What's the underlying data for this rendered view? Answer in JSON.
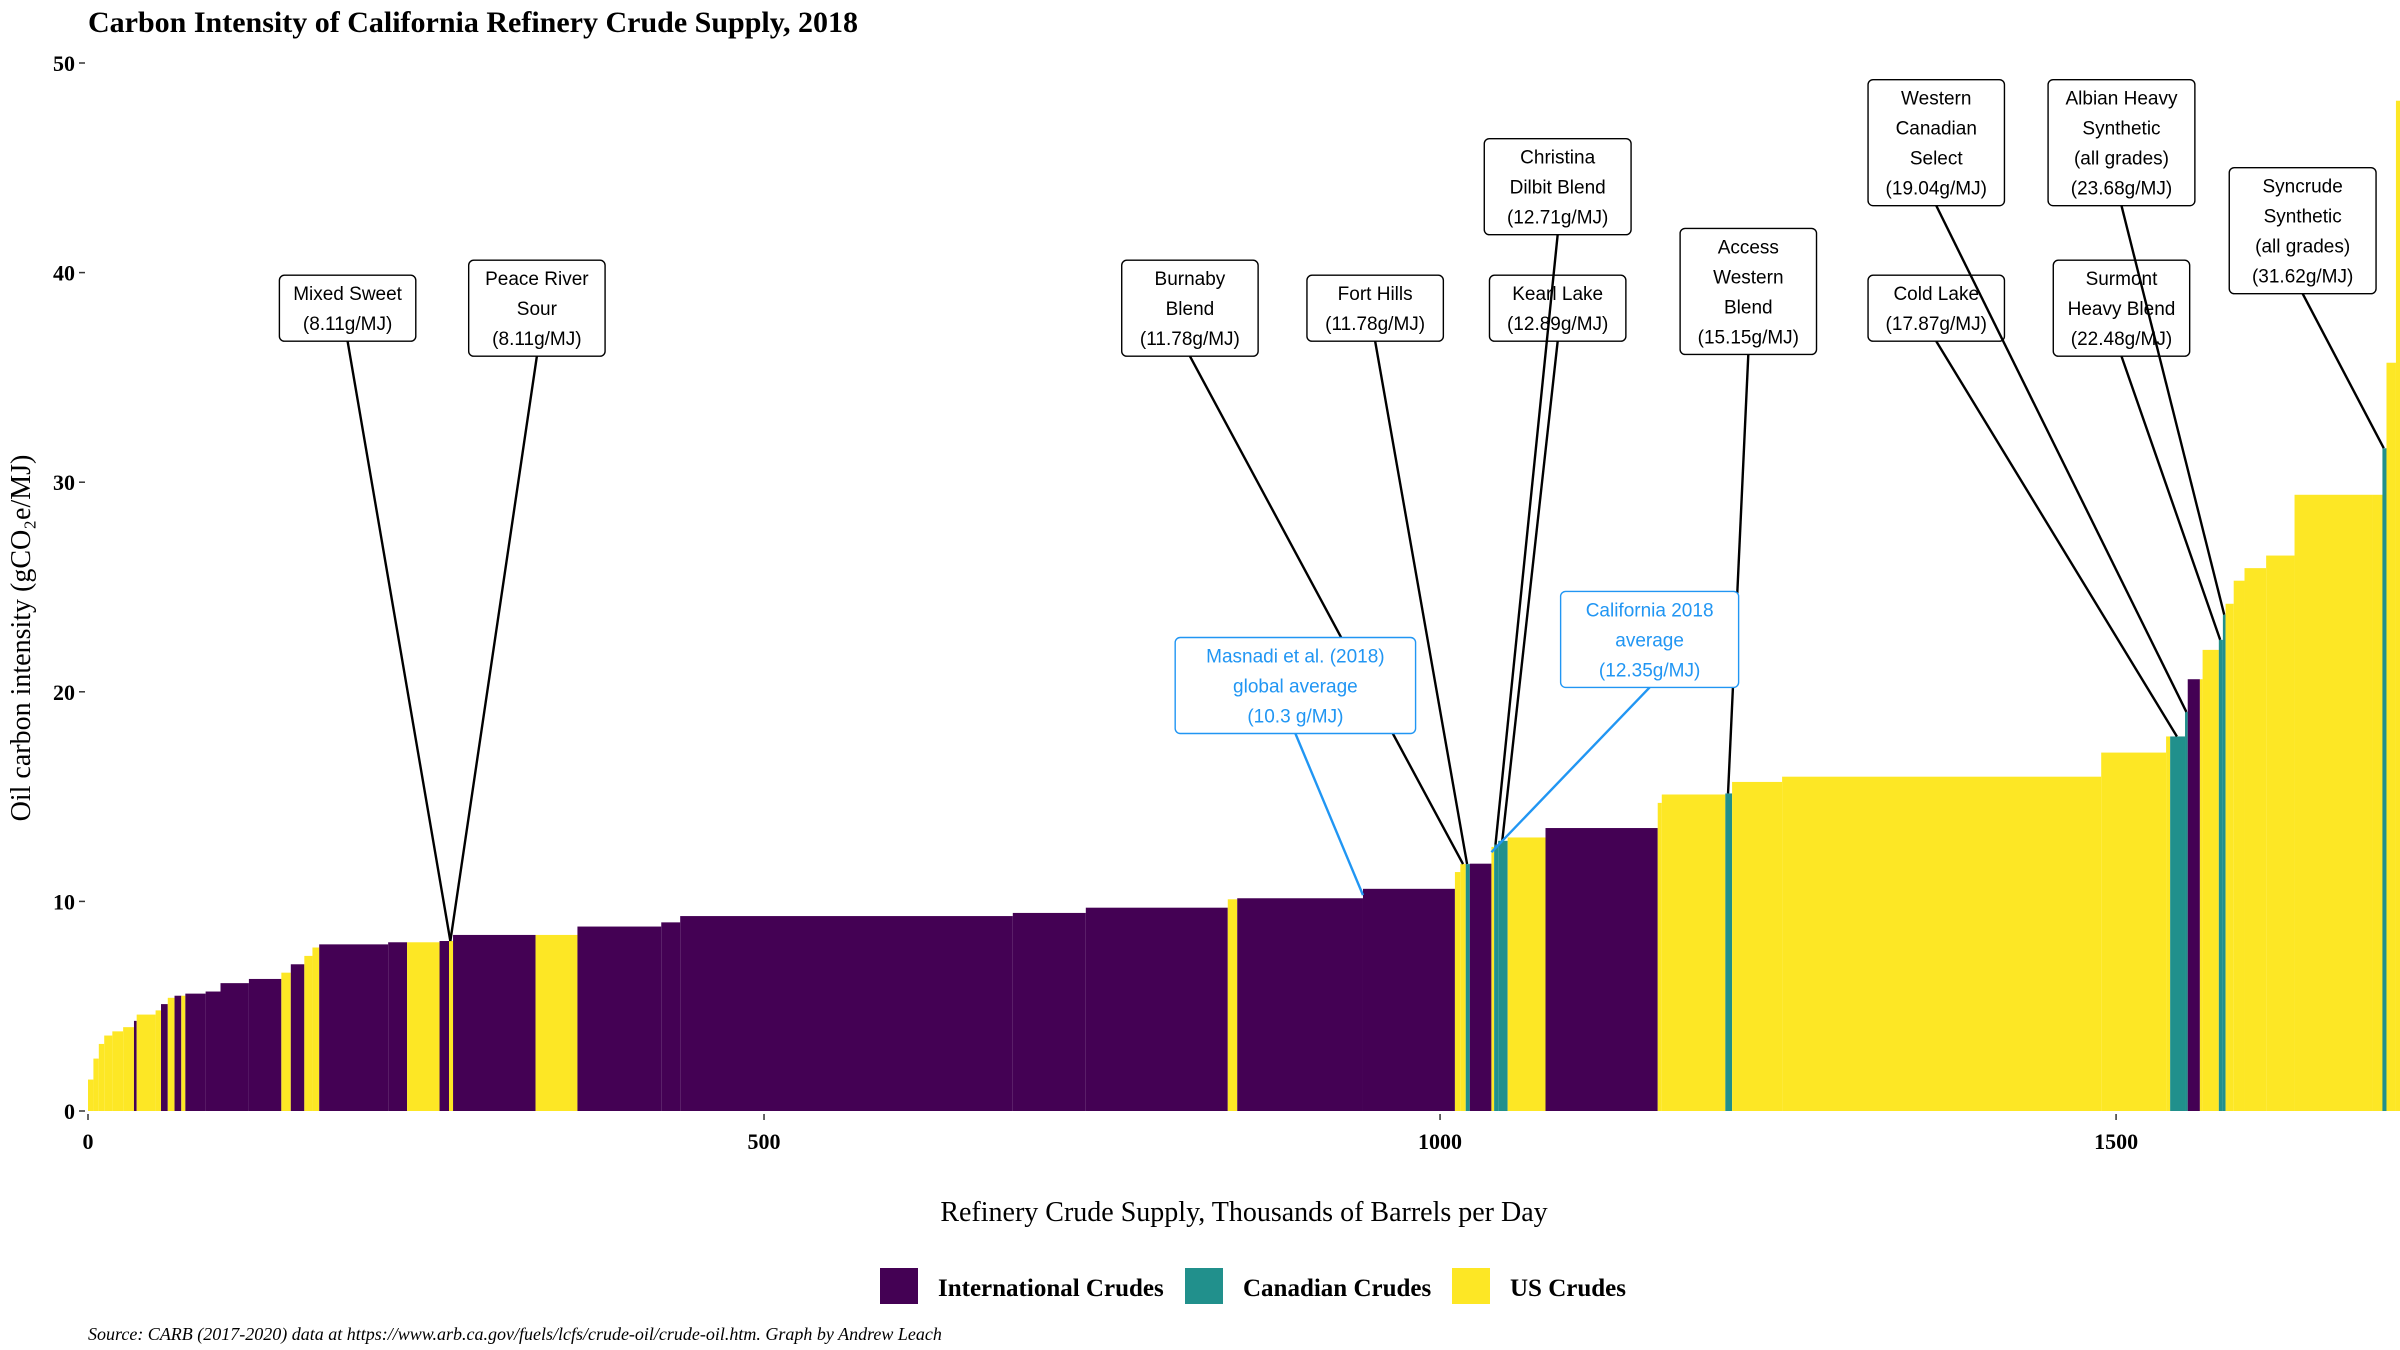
{
  "chart_data": {
    "type": "bar",
    "title": "Carbon Intensity of California Refinery Crude Supply, 2018",
    "xlabel": "Refinery Crude Supply, Thousands of Barrels per Day",
    "ylabel": "Oil carbon intensity (gCO₂e/MJ)",
    "xlim": [
      0,
      1710
    ],
    "ylim": [
      0,
      50
    ],
    "x_ticks": [
      0,
      500,
      1000,
      1500
    ],
    "y_ticks": [
      0,
      10,
      20,
      30,
      40,
      50
    ],
    "grid": false,
    "legend_position": "bottom",
    "legend": [
      {
        "name": "International Crudes",
        "color": "#440154"
      },
      {
        "name": "Canadian Crudes",
        "color": "#21908C"
      },
      {
        "name": "US Crudes",
        "color": "#FDE725"
      }
    ],
    "caption": "Source: CARB (2017-2020) data at https://www.arb.ca.gov/fuels/lcfs/crude-oil/crude-oil.htm. Graph by Andrew Leach",
    "bars": [
      {
        "x0": 0,
        "x1": 4,
        "y": 1.5,
        "group": "US Crudes"
      },
      {
        "x0": 4,
        "x1": 8,
        "y": 2.5,
        "group": "US Crudes"
      },
      {
        "x0": 8,
        "x1": 12,
        "y": 3.2,
        "group": "US Crudes"
      },
      {
        "x0": 12,
        "x1": 18,
        "y": 3.6,
        "group": "US Crudes"
      },
      {
        "x0": 18,
        "x1": 26,
        "y": 3.8,
        "group": "US Crudes"
      },
      {
        "x0": 26,
        "x1": 34,
        "y": 4.0,
        "group": "US Crudes"
      },
      {
        "x0": 34,
        "x1": 36,
        "y": 4.3,
        "group": "International Crudes"
      },
      {
        "x0": 36,
        "x1": 50,
        "y": 4.6,
        "group": "US Crudes"
      },
      {
        "x0": 50,
        "x1": 54,
        "y": 4.8,
        "group": "US Crudes"
      },
      {
        "x0": 54,
        "x1": 59,
        "y": 5.1,
        "group": "International Crudes"
      },
      {
        "x0": 59,
        "x1": 64,
        "y": 5.4,
        "group": "US Crudes"
      },
      {
        "x0": 64,
        "x1": 69,
        "y": 5.5,
        "group": "International Crudes"
      },
      {
        "x0": 69,
        "x1": 72,
        "y": 5.5,
        "group": "US Crudes"
      },
      {
        "x0": 72,
        "x1": 87,
        "y": 5.6,
        "group": "International Crudes"
      },
      {
        "x0": 87,
        "x1": 98,
        "y": 5.7,
        "group": "International Crudes"
      },
      {
        "x0": 98,
        "x1": 119,
        "y": 6.1,
        "group": "International Crudes"
      },
      {
        "x0": 119,
        "x1": 143,
        "y": 6.3,
        "group": "International Crudes"
      },
      {
        "x0": 143,
        "x1": 150,
        "y": 6.6,
        "group": "US Crudes"
      },
      {
        "x0": 150,
        "x1": 160,
        "y": 7.0,
        "group": "International Crudes"
      },
      {
        "x0": 160,
        "x1": 166,
        "y": 7.4,
        "group": "US Crudes"
      },
      {
        "x0": 166,
        "x1": 171,
        "y": 7.8,
        "group": "US Crudes"
      },
      {
        "x0": 171,
        "x1": 222,
        "y": 7.95,
        "group": "International Crudes"
      },
      {
        "x0": 222,
        "x1": 236,
        "y": 8.05,
        "group": "International Crudes"
      },
      {
        "x0": 236,
        "x1": 260,
        "y": 8.05,
        "group": "US Crudes"
      },
      {
        "x0": 260,
        "x1": 267,
        "y": 8.11,
        "group": "International Crudes"
      },
      {
        "x0": 267,
        "x1": 270,
        "y": 8.11,
        "group": "US Crudes"
      },
      {
        "x0": 270,
        "x1": 331,
        "y": 8.4,
        "group": "International Crudes"
      },
      {
        "x0": 331,
        "x1": 362,
        "y": 8.4,
        "group": "US Crudes"
      },
      {
        "x0": 362,
        "x1": 424,
        "y": 8.8,
        "group": "International Crudes"
      },
      {
        "x0": 424,
        "x1": 438,
        "y": 9.0,
        "group": "International Crudes"
      },
      {
        "x0": 438,
        "x1": 684,
        "y": 9.3,
        "group": "International Crudes"
      },
      {
        "x0": 684,
        "x1": 738,
        "y": 9.45,
        "group": "International Crudes"
      },
      {
        "x0": 738,
        "x1": 843,
        "y": 9.7,
        "group": "International Crudes"
      },
      {
        "x0": 843,
        "x1": 850,
        "y": 10.1,
        "group": "US Crudes"
      },
      {
        "x0": 850,
        "x1": 943,
        "y": 10.15,
        "group": "International Crudes"
      },
      {
        "x0": 943,
        "x1": 1011,
        "y": 10.6,
        "group": "International Crudes"
      },
      {
        "x0": 1011,
        "x1": 1015,
        "y": 11.4,
        "group": "US Crudes"
      },
      {
        "x0": 1015,
        "x1": 1019,
        "y": 11.78,
        "group": "US Crudes"
      },
      {
        "x0": 1019,
        "x1": 1022,
        "y": 11.78,
        "group": "Canadian Crudes"
      },
      {
        "x0": 1022,
        "x1": 1038,
        "y": 11.8,
        "group": "International Crudes"
      },
      {
        "x0": 1038,
        "x1": 1040,
        "y": 12.6,
        "group": "US Crudes"
      },
      {
        "x0": 1040,
        "x1": 1043,
        "y": 12.71,
        "group": "Canadian Crudes"
      },
      {
        "x0": 1043,
        "x1": 1050,
        "y": 12.89,
        "group": "Canadian Crudes"
      },
      {
        "x0": 1050,
        "x1": 1078,
        "y": 13.05,
        "group": "US Crudes"
      },
      {
        "x0": 1078,
        "x1": 1161,
        "y": 13.5,
        "group": "International Crudes"
      },
      {
        "x0": 1161,
        "x1": 1164,
        "y": 14.7,
        "group": "US Crudes"
      },
      {
        "x0": 1164,
        "x1": 1211,
        "y": 15.1,
        "group": "US Crudes"
      },
      {
        "x0": 1211,
        "x1": 1216,
        "y": 15.15,
        "group": "Canadian Crudes"
      },
      {
        "x0": 1216,
        "x1": 1253,
        "y": 15.7,
        "group": "US Crudes"
      },
      {
        "x0": 1253,
        "x1": 1489,
        "y": 15.95,
        "group": "US Crudes"
      },
      {
        "x0": 1489,
        "x1": 1537,
        "y": 17.1,
        "group": "US Crudes"
      },
      {
        "x0": 1537,
        "x1": 1540,
        "y": 17.87,
        "group": "US Crudes"
      },
      {
        "x0": 1540,
        "x1": 1551,
        "y": 17.87,
        "group": "Canadian Crudes"
      },
      {
        "x0": 1551,
        "x1": 1553,
        "y": 19.04,
        "group": "Canadian Crudes"
      },
      {
        "x0": 1553,
        "x1": 1562,
        "y": 20.6,
        "group": "International Crudes"
      },
      {
        "x0": 1562,
        "x1": 1564,
        "y": 20.6,
        "group": "US Crudes"
      },
      {
        "x0": 1564,
        "x1": 1576,
        "y": 22.0,
        "group": "US Crudes"
      },
      {
        "x0": 1576,
        "x1": 1579,
        "y": 22.48,
        "group": "Canadian Crudes"
      },
      {
        "x0": 1579,
        "x1": 1581,
        "y": 23.68,
        "group": "Canadian Crudes"
      },
      {
        "x0": 1581,
        "x1": 1587,
        "y": 24.2,
        "group": "US Crudes"
      },
      {
        "x0": 1587,
        "x1": 1595,
        "y": 25.3,
        "group": "US Crudes"
      },
      {
        "x0": 1595,
        "x1": 1611,
        "y": 25.9,
        "group": "US Crudes"
      },
      {
        "x0": 1611,
        "x1": 1632,
        "y": 26.5,
        "group": "US Crudes"
      },
      {
        "x0": 1632,
        "x1": 1690,
        "y": 29.4,
        "group": "US Crudes"
      },
      {
        "x0": 1690,
        "x1": 1700,
        "y": 29.4,
        "group": "US Crudes"
      },
      {
        "x0": 1697,
        "x1": 1700,
        "y": 31.62,
        "group": "Canadian Crudes"
      },
      {
        "x0": 1700,
        "x1": 1707,
        "y": 35.7,
        "group": "US Crudes"
      },
      {
        "x0": 1707,
        "x1": 1710,
        "y": 48.2,
        "group": "US Crudes"
      }
    ],
    "annotations": [
      {
        "lines": [
          "Mixed Sweet",
          "(8.11g/MJ)"
        ],
        "label_x": 192,
        "label_y": 38.3,
        "point_x": 268,
        "point_y": 8.11,
        "style": "black"
      },
      {
        "lines": [
          "Peace River",
          "Sour",
          "(8.11g/MJ)"
        ],
        "label_x": 332,
        "label_y": 38.3,
        "point_x": 268,
        "point_y": 8.11,
        "style": "black"
      },
      {
        "lines": [
          "Burnaby",
          "Blend",
          "(11.78g/MJ)"
        ],
        "label_x": 815,
        "label_y": 38.3,
        "point_x": 1017,
        "point_y": 11.78,
        "style": "black"
      },
      {
        "lines": [
          "Fort Hills",
          "(11.78g/MJ)"
        ],
        "label_x": 952,
        "label_y": 38.3,
        "point_x": 1020,
        "point_y": 11.78,
        "style": "black"
      },
      {
        "lines": [
          "Kearl Lake",
          "(12.89g/MJ)"
        ],
        "label_x": 1087,
        "label_y": 38.3,
        "point_x": 1046,
        "point_y": 12.89,
        "style": "black"
      },
      {
        "lines": [
          "Christina",
          "Dilbit Blend",
          "(12.71g/MJ)"
        ],
        "label_x": 1087,
        "label_y": 44.1,
        "point_x": 1041,
        "point_y": 12.71,
        "style": "black"
      },
      {
        "lines": [
          "Access",
          "Western",
          "Blend",
          "(15.15g/MJ)"
        ],
        "label_x": 1228,
        "label_y": 39.1,
        "point_x": 1213,
        "point_y": 15.15,
        "style": "black"
      },
      {
        "lines": [
          "Cold Lake",
          "(17.87g/MJ)"
        ],
        "label_x": 1367,
        "label_y": 38.3,
        "point_x": 1545,
        "point_y": 17.87,
        "style": "black"
      },
      {
        "lines": [
          "Western",
          "Canadian",
          "Select",
          "(19.04g/MJ)"
        ],
        "label_x": 1367,
        "label_y": 46.2,
        "point_x": 1552,
        "point_y": 19.04,
        "style": "black"
      },
      {
        "lines": [
          "Surmont",
          "Heavy Blend",
          "(22.48g/MJ)"
        ],
        "label_x": 1504,
        "label_y": 38.3,
        "point_x": 1577,
        "point_y": 22.48,
        "style": "black"
      },
      {
        "lines": [
          "Albian Heavy",
          "Synthetic",
          "(all grades)",
          "(23.68g/MJ)"
        ],
        "label_x": 1504,
        "label_y": 46.2,
        "point_x": 1580,
        "point_y": 23.68,
        "style": "black"
      },
      {
        "lines": [
          "Syncrude",
          "Synthetic",
          "(all grades)",
          "(31.62g/MJ)"
        ],
        "label_x": 1638,
        "label_y": 42.0,
        "point_x": 1698,
        "point_y": 31.62,
        "style": "black"
      },
      {
        "lines": [
          "Masnadi et al. (2018)",
          "global average",
          "(10.3 g/MJ)"
        ],
        "label_x": 893,
        "label_y": 20.3,
        "point_x": 943,
        "point_y": 10.3,
        "style": "blue"
      },
      {
        "lines": [
          "California 2018",
          "average",
          "(12.35g/MJ)"
        ],
        "label_x": 1155,
        "label_y": 22.5,
        "point_x": 1038,
        "point_y": 12.35,
        "style": "blue"
      }
    ]
  }
}
